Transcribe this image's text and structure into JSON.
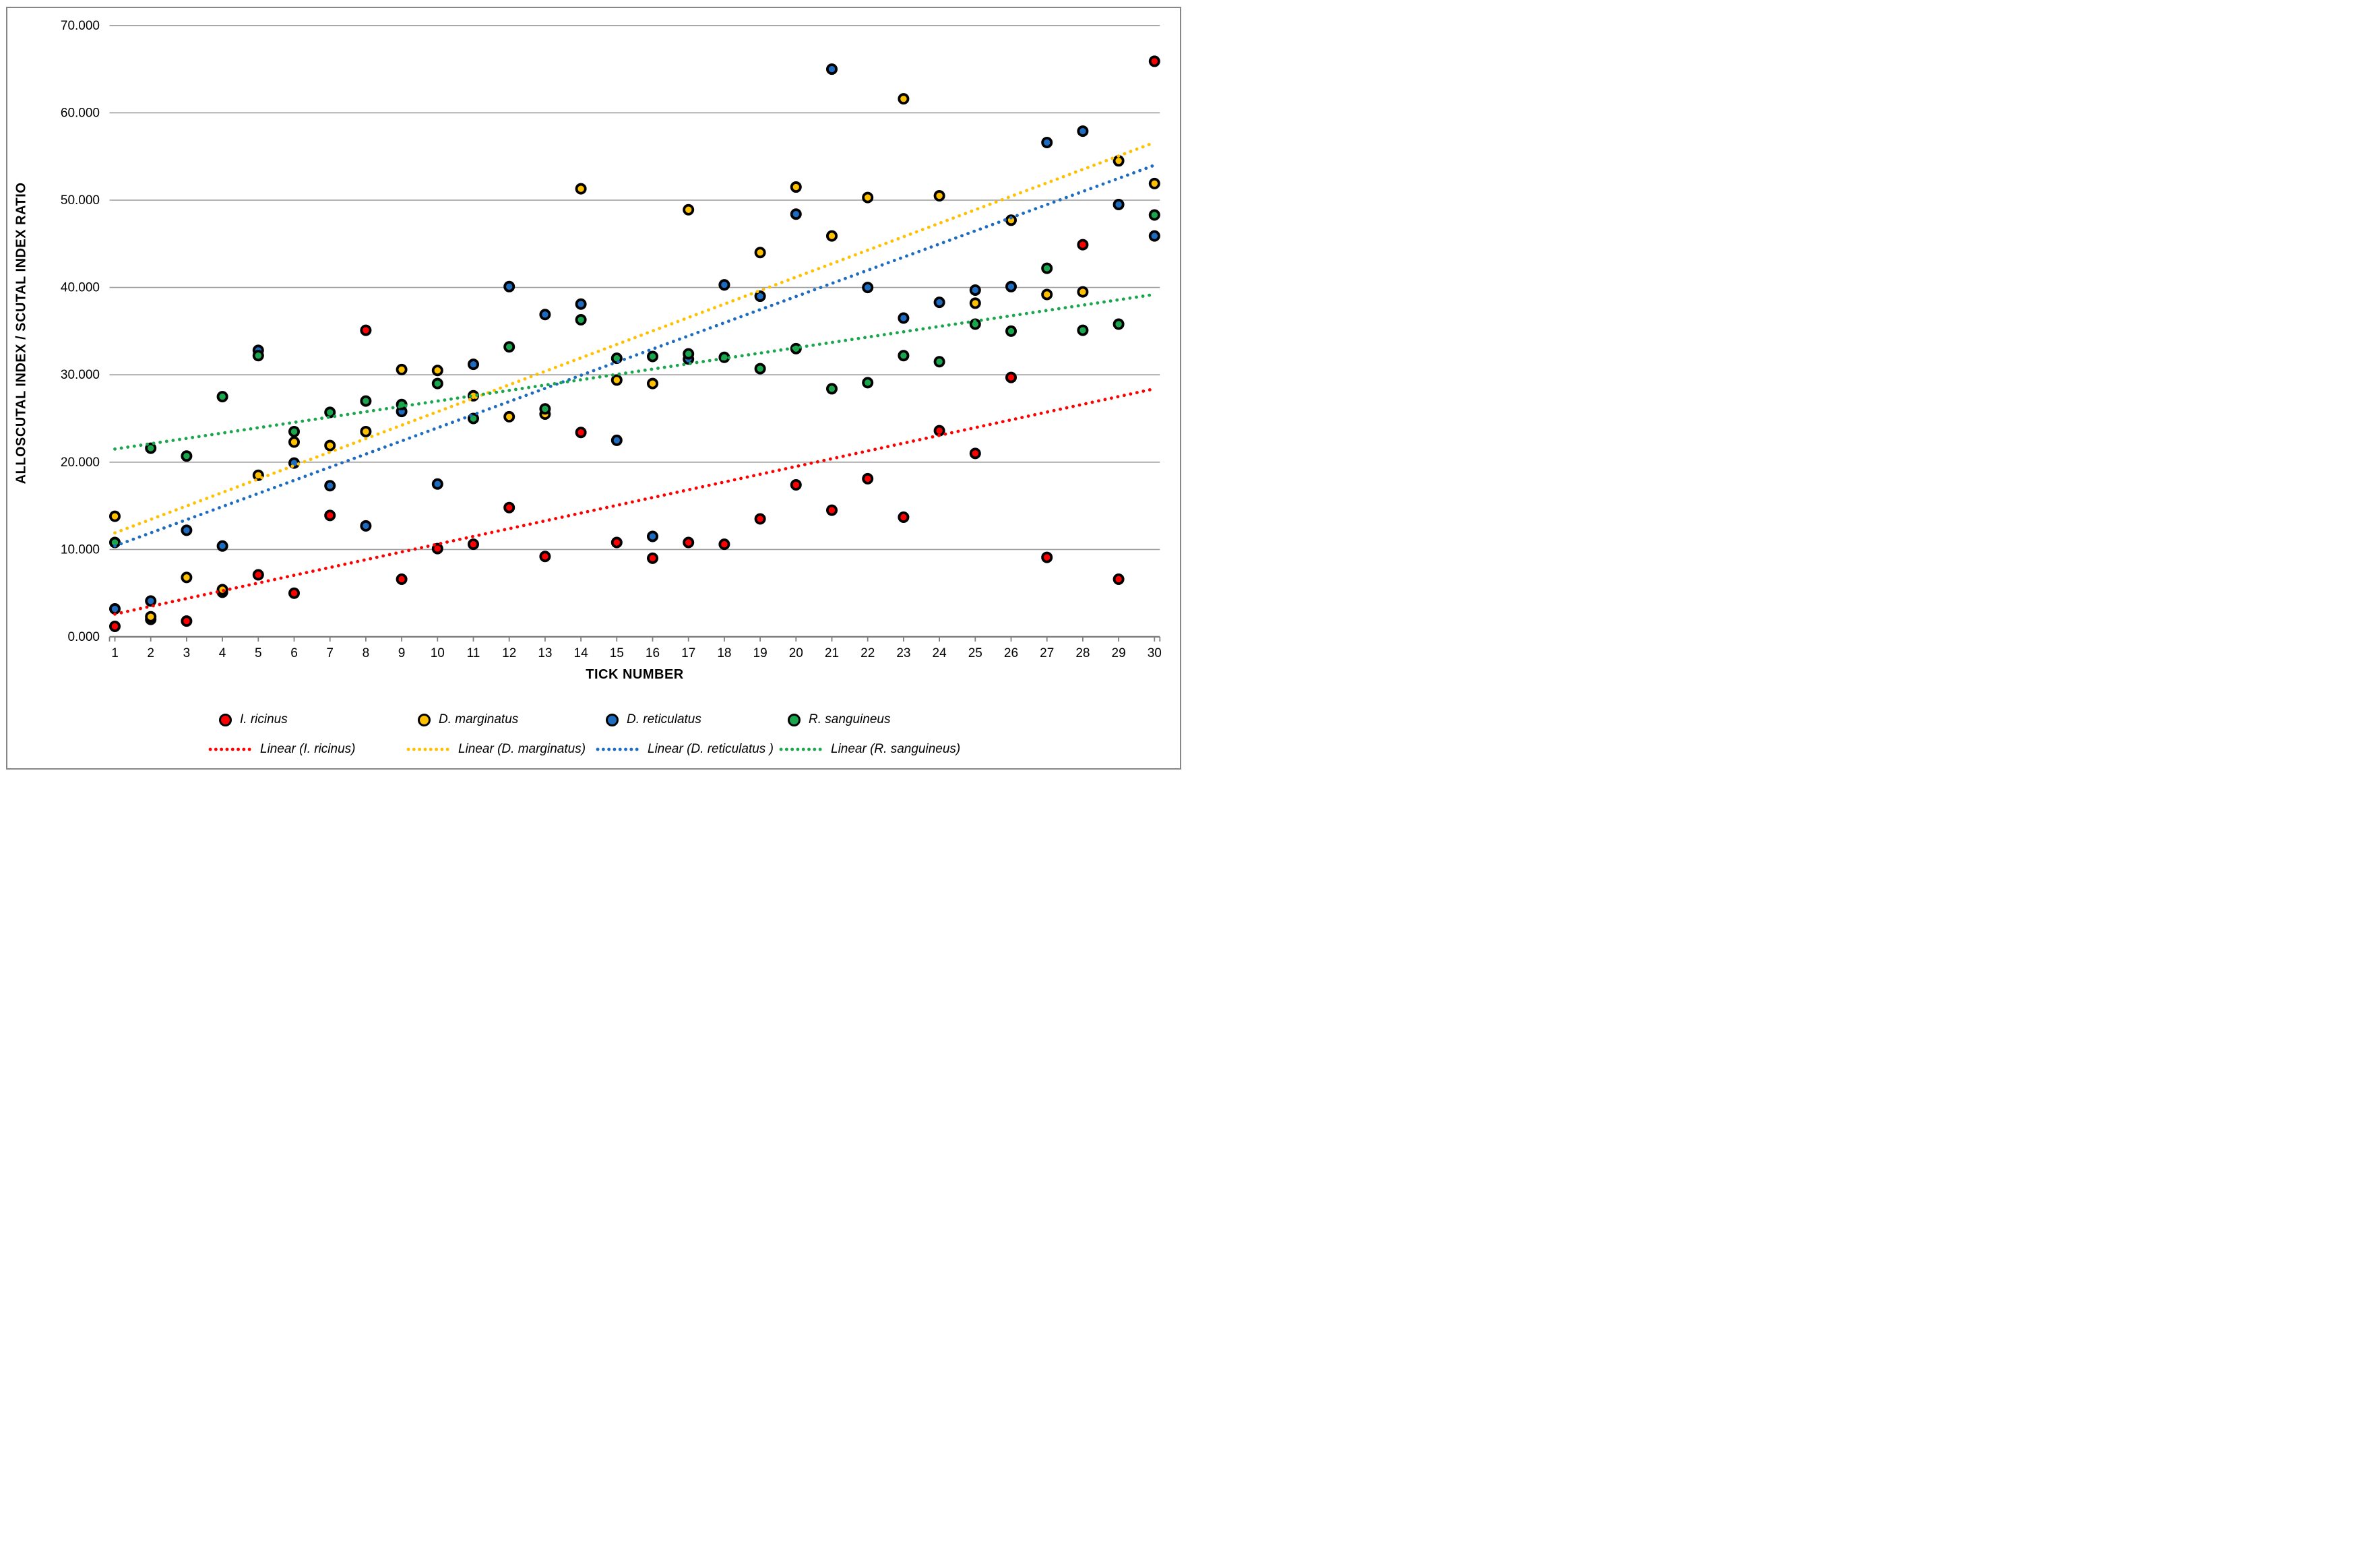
{
  "y_axis": {
    "title": "ALLOSCUTAL INDEX / SCUTAL INDEX RATIO",
    "tick_labels": [
      "0.000",
      "10.000",
      "20.000",
      "30.000",
      "40.000",
      "50.000",
      "60.000",
      "70.000"
    ]
  },
  "x_axis": {
    "title": "TICK NUMBER",
    "tick_labels": [
      "1",
      "2",
      "3",
      "4",
      "5",
      "6",
      "7",
      "8",
      "9",
      "10",
      "11",
      "12",
      "13",
      "14",
      "15",
      "16",
      "17",
      "18",
      "19",
      "20",
      "21",
      "22",
      "23",
      "24",
      "25",
      "26",
      "27",
      "28",
      "29",
      "30"
    ]
  },
  "legend": {
    "marker_row": [
      {
        "label": "I. ricinus",
        "color": "#FF0000"
      },
      {
        "label": "D. marginatus",
        "color": "#FFC000"
      },
      {
        "label": "D. reticulatus",
        "color": "#1E6CC0"
      },
      {
        "label": "R. sanguineus",
        "color": "#1AA64C"
      }
    ],
    "line_row": [
      {
        "label": "Linear (I. ricinus)",
        "color": "#FF0000"
      },
      {
        "label": "Linear (D. marginatus)",
        "color": "#FFC000"
      },
      {
        "label": "Linear (D. reticulatus )",
        "color": "#1E6CC0"
      },
      {
        "label": "Linear (R. sanguineus)",
        "color": "#1AA64C"
      }
    ]
  },
  "colors": {
    "gridline": "#9C9C9C",
    "axis": "#808080",
    "frame": "#878787",
    "text": "#000000"
  },
  "chart_data": {
    "type": "scatter",
    "title": "",
    "xlabel": "TICK NUMBER",
    "ylabel": "ALLOSCUTAL INDEX / SCUTAL INDEX RATIO",
    "xlim": [
      1,
      30
    ],
    "ylim": [
      0,
      70
    ],
    "grid": "horizontal",
    "legend_position": "bottom",
    "x": [
      1,
      2,
      3,
      4,
      5,
      6,
      7,
      8,
      9,
      10,
      11,
      12,
      13,
      14,
      15,
      16,
      17,
      18,
      19,
      20,
      21,
      22,
      23,
      24,
      25,
      26,
      27,
      28,
      29,
      30
    ],
    "series": [
      {
        "name": "I. ricinus",
        "color": "#FF0000",
        "values": [
          1.2,
          2.0,
          1.8,
          5.1,
          7.1,
          5.0,
          13.9,
          35.1,
          6.6,
          10.1,
          10.6,
          14.8,
          9.2,
          23.4,
          10.8,
          9.0,
          10.8,
          10.6,
          13.5,
          17.4,
          14.5,
          18.1,
          13.7,
          23.6,
          21.0,
          29.7,
          9.1,
          44.9,
          6.6,
          65.9
        ]
      },
      {
        "name": "D. marginatus",
        "color": "#FFC000",
        "values": [
          13.8,
          2.3,
          6.8,
          5.4,
          18.5,
          22.3,
          21.9,
          23.5,
          30.6,
          30.5,
          27.6,
          25.2,
          25.5,
          51.3,
          29.4,
          29.0,
          48.9,
          40.3,
          44.0,
          51.5,
          45.9,
          50.3,
          61.6,
          50.5,
          38.2,
          47.7,
          39.2,
          39.5,
          54.5,
          51.9
        ]
      },
      {
        "name": "D. reticulatus",
        "color": "#1E6CC0",
        "values": [
          3.2,
          4.1,
          12.2,
          10.4,
          32.8,
          19.9,
          17.3,
          12.7,
          25.8,
          17.5,
          31.2,
          40.1,
          36.9,
          38.1,
          22.5,
          11.5,
          31.8,
          40.3,
          39.0,
          48.4,
          65.0,
          40.0,
          36.5,
          38.3,
          39.7,
          40.1,
          56.6,
          57.9,
          49.5,
          45.9
        ]
      },
      {
        "name": "R. sanguineus",
        "color": "#1AA64C",
        "values": [
          10.8,
          21.6,
          20.7,
          27.5,
          32.2,
          23.5,
          25.7,
          27.0,
          26.6,
          29.0,
          25.0,
          33.2,
          26.1,
          36.3,
          31.9,
          32.1,
          32.4,
          32.0,
          30.7,
          33.0,
          28.4,
          29.1,
          32.2,
          31.5,
          35.8,
          35.0,
          42.2,
          35.1,
          35.8,
          48.3
        ]
      }
    ],
    "trendlines": [
      {
        "label": "Linear (I. ricinus)",
        "color": "#FF0000",
        "start_value": 2.6,
        "end_value": 28.4
      },
      {
        "label": "Linear (D. marginatus)",
        "color": "#FFC000",
        "start_value": 11.9,
        "end_value": 56.6
      },
      {
        "label": "Linear (D. reticulatus )",
        "color": "#1E6CC0",
        "start_value": 10.4,
        "end_value": 54.0
      },
      {
        "label": "Linear (R. sanguineus)",
        "color": "#1AA64C",
        "start_value": 21.5,
        "end_value": 39.2
      }
    ]
  }
}
